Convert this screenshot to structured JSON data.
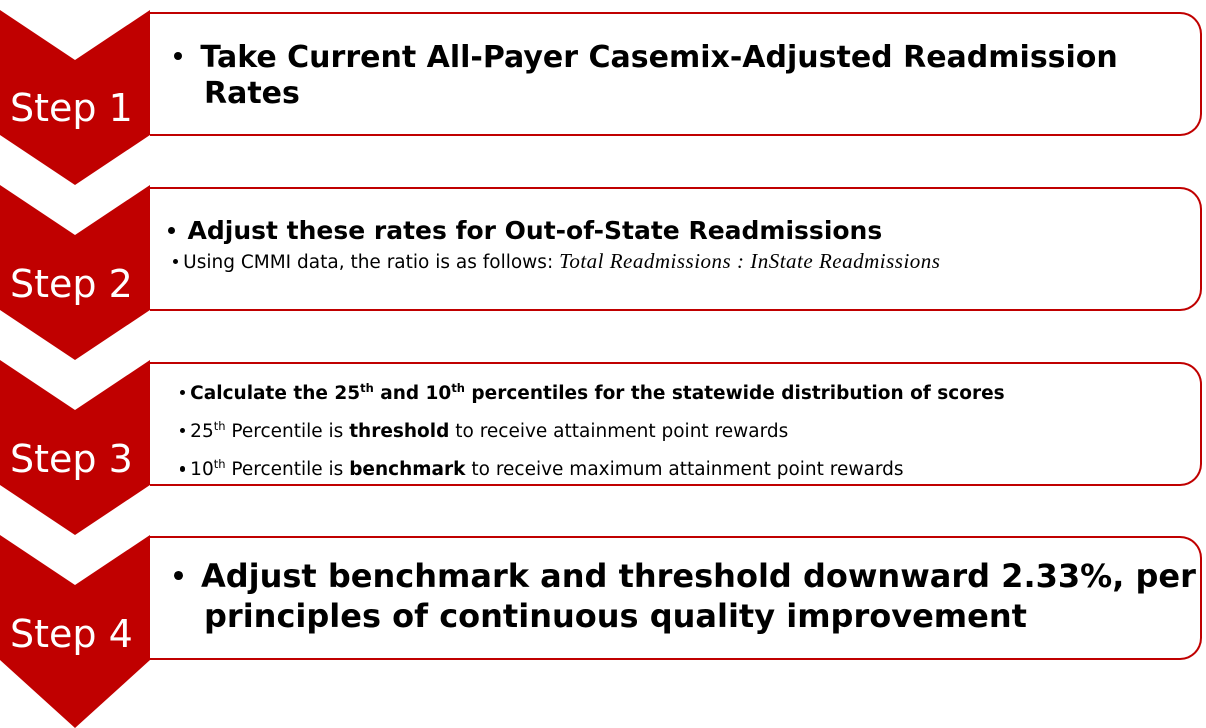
{
  "steps": [
    {
      "label": "Step 1",
      "lines": [
        [
          "Take Current All-Payer Casemix-Adjusted Readmission Rates"
        ]
      ]
    },
    {
      "label": "Step 2",
      "lines": [
        [
          "Adjust these rates for Out-of-State Readmissions"
        ],
        [
          "Using CMMI data, the ratio is as follows: ",
          "Total Readmissions : InState Readmissions"
        ]
      ]
    },
    {
      "label": "Step 3",
      "lines": [
        [
          "Calculate the 25",
          "th",
          " and 10",
          "th",
          " percentiles for the statewide distribution of scores"
        ],
        [
          "25",
          "th",
          " Percentile is ",
          "threshold",
          " to receive attainment point rewards"
        ],
        [
          "10",
          "th",
          " Percentile is ",
          "benchmark",
          " to receive maximum attainment point rewards"
        ]
      ]
    },
    {
      "label": "Step 4",
      "lines": [
        [
          "Adjust benchmark and threshold downward 2.33%, per principles of continuous quality improvement"
        ]
      ]
    }
  ]
}
